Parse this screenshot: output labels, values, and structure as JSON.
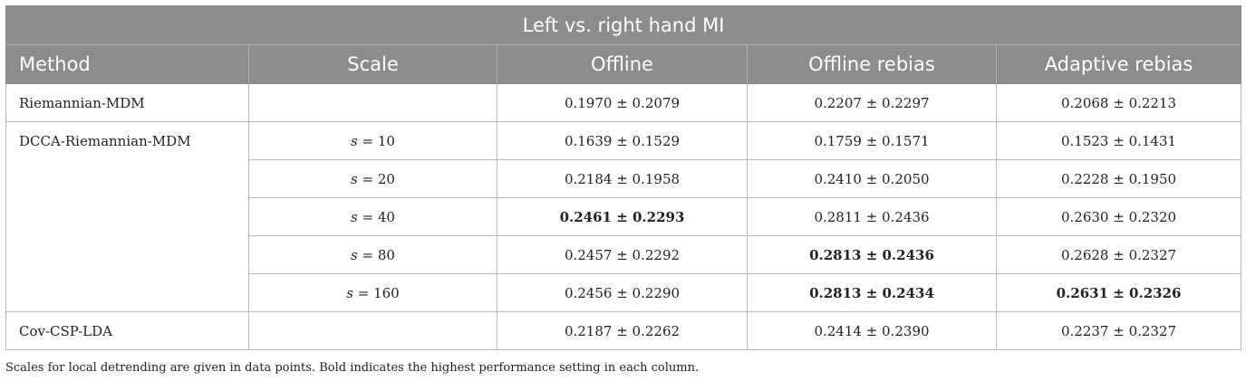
{
  "table": {
    "title": "Left vs. right hand MI",
    "headers": [
      "Method",
      "Scale",
      "Offline",
      "Offline rebias",
      "Adaptive rebias"
    ],
    "groups": [
      {
        "method": "Riemannian-MDM",
        "rows": [
          {
            "scale_var": "",
            "scale_val": "",
            "offline": "0.1970 ± 0.2079",
            "offline_rebias": "0.2207 ± 0.2297",
            "adaptive_rebias": "0.2068 ± 0.2213",
            "bold": []
          }
        ]
      },
      {
        "method": "DCCA-Riemannian-MDM",
        "rows": [
          {
            "scale_var": "s",
            "scale_val": " = 10",
            "offline": "0.1639 ± 0.1529",
            "offline_rebias": "0.1759 ± 0.1571",
            "adaptive_rebias": "0.1523 ± 0.1431",
            "bold": []
          },
          {
            "scale_var": "s",
            "scale_val": " = 20",
            "offline": "0.2184 ± 0.1958",
            "offline_rebias": "0.2410 ± 0.2050",
            "adaptive_rebias": "0.2228 ± 0.1950",
            "bold": []
          },
          {
            "scale_var": "s",
            "scale_val": " = 40",
            "offline": "0.2461 ± 0.2293",
            "offline_rebias": "0.2811 ± 0.2436",
            "adaptive_rebias": "0.2630 ± 0.2320",
            "bold": [
              "offline"
            ]
          },
          {
            "scale_var": "s",
            "scale_val": " = 80",
            "offline": "0.2457 ± 0.2292",
            "offline_rebias": "0.2813 ± 0.2436",
            "adaptive_rebias": "0.2628 ± 0.2327",
            "bold": [
              "offline_rebias"
            ]
          },
          {
            "scale_var": "s",
            "scale_val": " = 160",
            "offline": "0.2456 ± 0.2290",
            "offline_rebias": "0.2813 ± 0.2434",
            "adaptive_rebias": "0.2631 ± 0.2326",
            "bold": [
              "offline_rebias",
              "adaptive_rebias"
            ]
          }
        ]
      },
      {
        "method": "Cov-CSP-LDA",
        "rows": [
          {
            "scale_var": "",
            "scale_val": "",
            "offline": "0.2187 ± 0.2262",
            "offline_rebias": "0.2414 ± 0.2390",
            "adaptive_rebias": "0.2237 ± 0.2327",
            "bold": []
          }
        ]
      }
    ],
    "footnote": "Scales for local detrending are given in data points. Bold indicates the highest performance setting in each column."
  }
}
